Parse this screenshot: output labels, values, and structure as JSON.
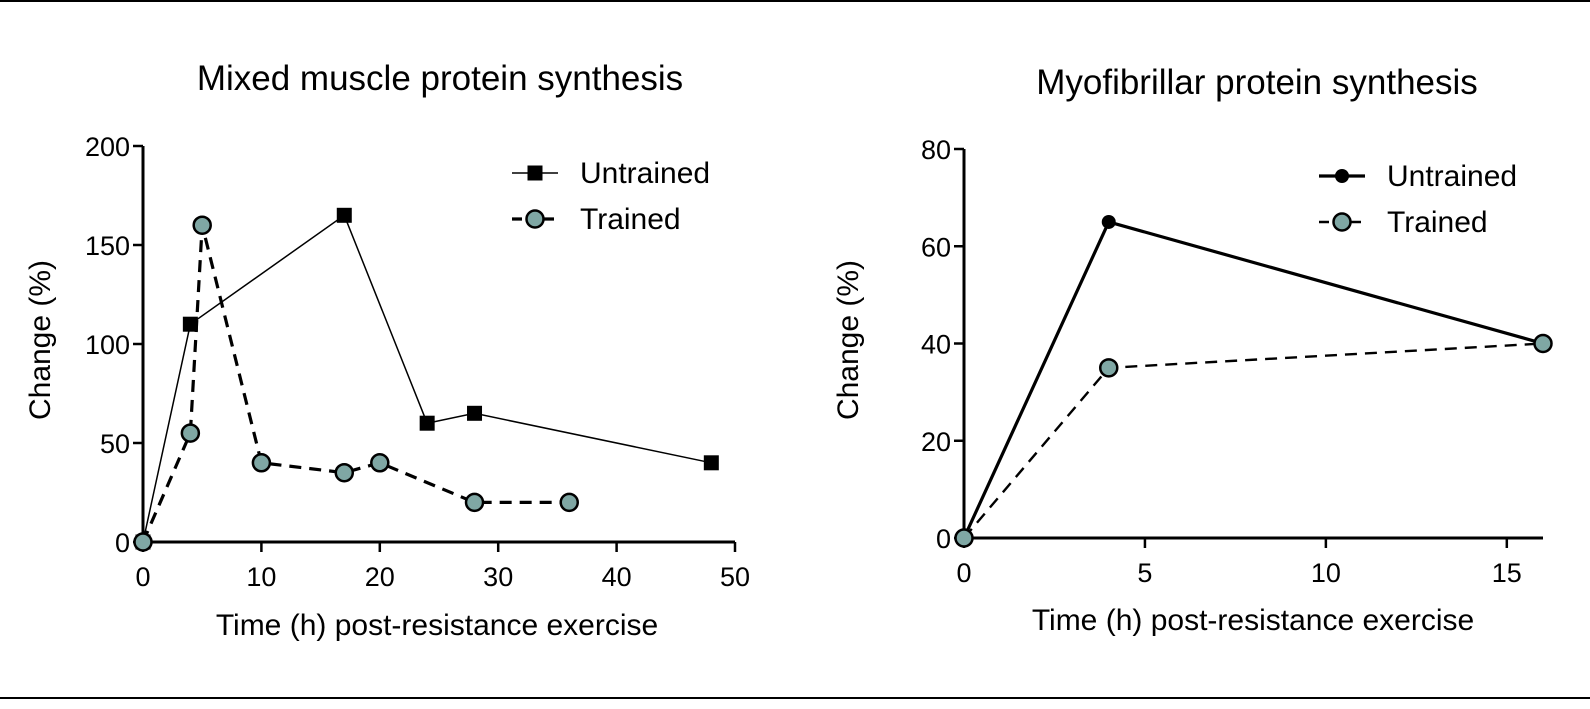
{
  "chart_data": [
    {
      "type": "line",
      "title": "Mixed muscle protein synthesis",
      "xlabel": "Time (h) post-resistance exercise",
      "ylabel": "Change (%)",
      "xlim": [
        0,
        50
      ],
      "ylim": [
        0,
        200
      ],
      "xticks": [
        0,
        10,
        20,
        30,
        40,
        50
      ],
      "yticks": [
        0,
        50,
        100,
        150,
        200
      ],
      "grid": false,
      "legend_position": "top-right",
      "series": [
        {
          "name": "Untrained",
          "marker": "square",
          "line_style": "solid",
          "color": "#000000",
          "x": [
            0,
            4,
            17,
            24,
            28,
            48
          ],
          "y": [
            0,
            110,
            165,
            60,
            65,
            40
          ]
        },
        {
          "name": "Trained",
          "marker": "circle",
          "line_style": "dashed",
          "color": "#000000",
          "marker_fill": "#7FA7A4",
          "x": [
            0,
            4,
            5,
            10,
            17,
            20,
            28,
            36
          ],
          "y": [
            0,
            55,
            160,
            40,
            35,
            40,
            20,
            20
          ]
        }
      ]
    },
    {
      "type": "line",
      "title": "Myofibrillar protein synthesis",
      "xlabel": "Time (h) post-resistance exercise",
      "ylabel": "Change  (%)",
      "xlim": [
        0,
        16
      ],
      "ylim": [
        0,
        80
      ],
      "xticks": [
        0,
        5,
        10,
        15
      ],
      "yticks": [
        0,
        20,
        40,
        60,
        80
      ],
      "grid": false,
      "legend_position": "top-right",
      "series": [
        {
          "name": "Untrained",
          "marker": "circle-filled",
          "line_style": "solid",
          "color": "#000000",
          "x": [
            0,
            4,
            16
          ],
          "y": [
            0,
            65,
            40
          ]
        },
        {
          "name": "Trained",
          "marker": "circle",
          "line_style": "dashed",
          "color": "#000000",
          "marker_fill": "#7FA7A4",
          "x": [
            0,
            4,
            16
          ],
          "y": [
            0,
            35,
            40
          ]
        }
      ]
    }
  ]
}
